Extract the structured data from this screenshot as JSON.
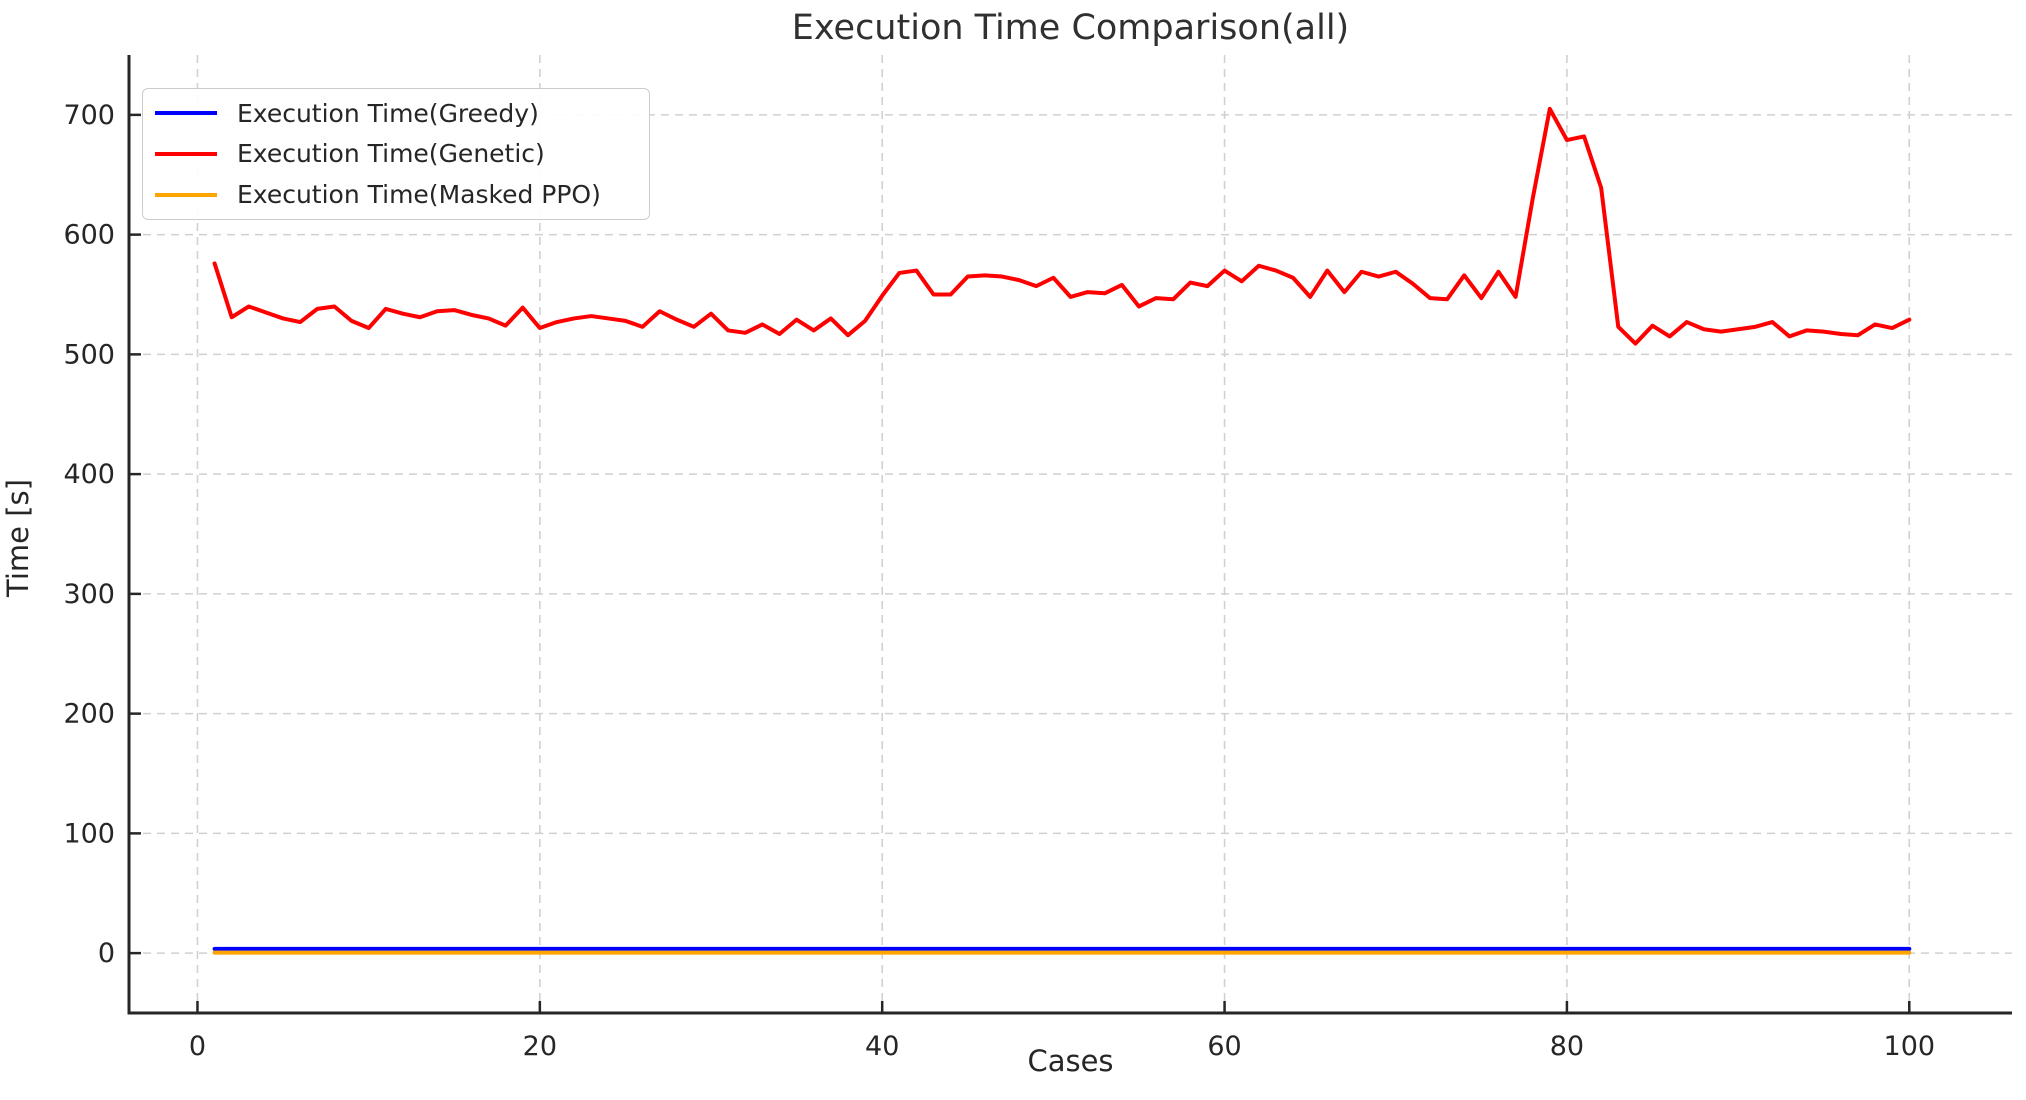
{
  "title": "Execution Time Comparison(all)",
  "chart_data": {
    "type": "line",
    "title": "Execution Time Comparison(all)",
    "xlabel": "Cases",
    "ylabel": "Time [s]",
    "x_ticks": [
      0,
      20,
      40,
      60,
      80,
      100
    ],
    "y_ticks": [
      0,
      100,
      200,
      300,
      400,
      500,
      600,
      700
    ],
    "xlim": [
      -4,
      106
    ],
    "ylim": [
      -50,
      750
    ],
    "grid": true,
    "grid_style": "dashed",
    "grid_color": "#d0d0d0",
    "spine_color": "#262626",
    "text_color": "#262626",
    "legend_position": "upper-left",
    "x_start": 1,
    "series": [
      {
        "name": "Execution Time(Greedy)",
        "color": "#0000ff",
        "constant": 3.5,
        "count": 100
      },
      {
        "name": "Execution Time(Genetic)",
        "color": "#ff0000",
        "values": [
          576,
          531,
          540,
          535,
          530,
          527,
          538,
          540,
          528,
          522,
          538,
          534,
          531,
          536,
          537,
          533,
          530,
          524,
          539,
          522,
          527,
          530,
          532,
          530,
          528,
          523,
          536,
          529,
          523,
          534,
          520,
          518,
          525,
          517,
          529,
          520,
          530,
          516,
          528,
          549,
          568,
          570,
          550,
          550,
          565,
          566,
          565,
          562,
          557,
          564,
          548,
          552,
          551,
          558,
          540,
          547,
          546,
          560,
          557,
          570,
          561,
          574,
          570,
          564,
          548,
          570,
          552,
          569,
          565,
          569,
          559,
          547,
          546,
          566,
          547,
          569,
          548,
          630,
          705,
          679,
          682,
          639,
          523,
          509,
          524,
          515,
          527,
          521,
          519,
          521,
          523,
          527,
          515,
          520,
          519,
          517,
          516,
          525,
          522,
          529
        ]
      },
      {
        "name": "Execution Time(Masked PPO)",
        "color": "#ffa500",
        "constant": 0.4,
        "count": 100
      }
    ]
  }
}
